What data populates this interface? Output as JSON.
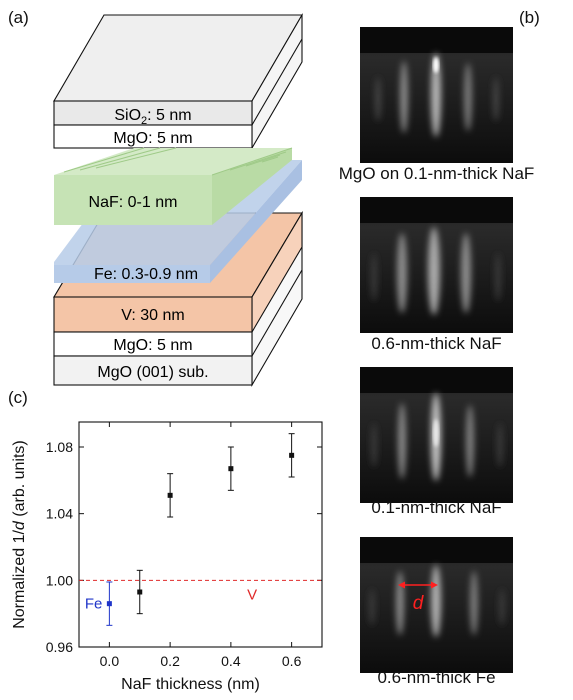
{
  "panels": {
    "a": "(a)",
    "b": "(b)",
    "c": "(c)"
  },
  "stack_layers": {
    "sio2": {
      "prefix": "SiO",
      "sub": "2",
      "suffix": ": 5 nm"
    },
    "mgo_cap": "MgO: 5 nm",
    "naf": "NaF: 0-1 nm",
    "fe": "Fe: 0.3-0.9 nm",
    "v": "V: 30 nm",
    "mgo_buffer": "MgO: 5 nm",
    "substrate": "MgO (001) sub."
  },
  "colors": {
    "naf": "#c6e3b5",
    "fe": "#b6cbe8",
    "v": "#f4c5a7",
    "fe_point": "#1f35c9",
    "v_line": "#e02a2a"
  },
  "rheed_captions": [
    "MgO on 0.1-nm-thick NaF",
    "0.6-nm-thick NaF",
    "0.1-nm-thick NaF",
    "0.6-nm-thick Fe"
  ],
  "rheed_annotation": "d",
  "chart_data": {
    "type": "scatter",
    "xlabel": "NaF thickness (nm)",
    "ylabel_parts": [
      "Normalized 1/",
      "d",
      " (arb. units)"
    ],
    "xlim": [
      -0.1,
      0.7
    ],
    "ylim": [
      0.96,
      1.095
    ],
    "xticks": [
      0.0,
      0.2,
      0.4,
      0.6
    ],
    "yticks": [
      0.96,
      1.0,
      1.04,
      1.08
    ],
    "xtick_labels": [
      "0.0",
      "0.2",
      "0.4",
      "0.6"
    ],
    "ytick_labels": [
      "0.96",
      "1.00",
      "1.04",
      "1.08"
    ],
    "series": [
      {
        "name": "Fe",
        "color": "#1f35c9",
        "points": [
          {
            "x": 0.0,
            "y": 0.986,
            "err": 0.013
          }
        ]
      },
      {
        "name": "",
        "color": "#111111",
        "points": [
          {
            "x": 0.1,
            "y": 0.993,
            "err": 0.013
          },
          {
            "x": 0.2,
            "y": 1.051,
            "err": 0.013
          },
          {
            "x": 0.4,
            "y": 1.067,
            "err": 0.013
          },
          {
            "x": 0.6,
            "y": 1.075,
            "err": 0.013
          }
        ]
      }
    ],
    "reference_line": {
      "name": "V",
      "y": 1.0,
      "style": "dashed",
      "color": "#e02a2a"
    },
    "grid": false
  }
}
